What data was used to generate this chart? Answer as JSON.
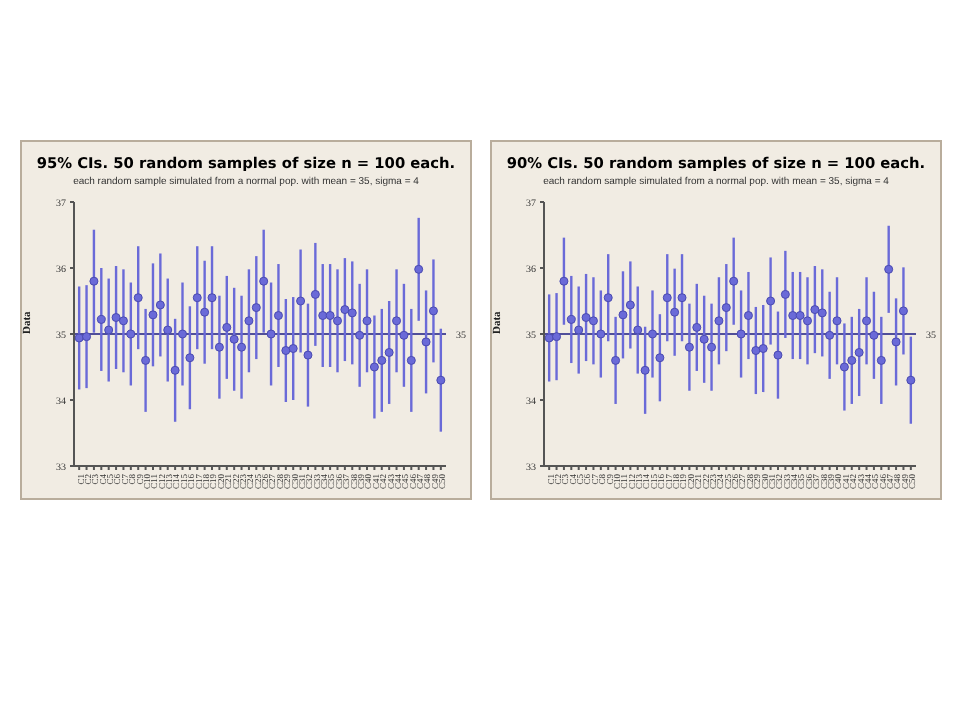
{
  "chart_data": [
    {
      "type": "scatter",
      "title": "95% CIs. 50 random samples of size n = 100 each.",
      "subtitle": "each random sample simulated from a normal pop. with mean = 35, sigma = 4",
      "ylabel": "Data",
      "categories": [
        "C1",
        "C2",
        "C3",
        "C4",
        "C5",
        "C6",
        "C7",
        "C8",
        "C9",
        "C10",
        "C11",
        "C12",
        "C13",
        "C14",
        "C15",
        "C16",
        "C17",
        "C18",
        "C19",
        "C20",
        "C21",
        "C22",
        "C23",
        "C24",
        "C25",
        "C26",
        "C27",
        "C28",
        "C29",
        "C30",
        "C31",
        "C32",
        "C33",
        "C34",
        "C35",
        "C36",
        "C37",
        "C38",
        "C39",
        "C40",
        "C41",
        "C42",
        "C43",
        "C44",
        "C45",
        "C46",
        "C47",
        "C48",
        "C49",
        "C50"
      ],
      "series": [
        {
          "color": "#6a6ad8",
          "values": [
            34.94,
            34.96,
            35.8,
            35.22,
            35.06,
            35.25,
            35.2,
            35.0,
            35.55,
            34.6,
            35.29,
            35.44,
            35.06,
            34.45,
            35.0,
            34.64,
            35.55,
            35.33,
            35.55,
            34.8,
            35.1,
            34.92,
            34.8,
            35.2,
            35.4,
            35.8,
            35.0,
            35.28,
            34.75,
            34.78,
            35.5,
            34.68,
            35.6,
            35.28,
            35.28,
            35.2,
            35.37,
            35.32,
            34.98,
            35.2,
            34.5,
            34.6,
            34.72,
            35.2,
            34.98,
            34.6,
            35.98,
            34.88,
            35.35,
            34.3
          ],
          "errors": [
            0.78,
            0.78,
            0.78,
            0.78,
            0.78,
            0.78,
            0.78,
            0.78,
            0.78,
            0.78,
            0.78,
            0.78,
            0.78,
            0.78,
            0.78,
            0.78,
            0.78,
            0.78,
            0.78,
            0.78,
            0.78,
            0.78,
            0.78,
            0.78,
            0.78,
            0.78,
            0.78,
            0.78,
            0.78,
            0.78,
            0.78,
            0.78,
            0.78,
            0.78,
            0.78,
            0.78,
            0.78,
            0.78,
            0.78,
            0.78,
            0.78,
            0.78,
            0.78,
            0.78,
            0.78,
            0.78,
            0.78,
            0.78,
            0.78,
            0.78
          ]
        }
      ],
      "ylim": [
        33,
        37
      ],
      "yticks": [
        33,
        34,
        35,
        36,
        37
      ],
      "ref_lines": [
        {
          "axis": "y",
          "value": 35,
          "label": "35",
          "color": "#1a1a80"
        }
      ],
      "marker": "circle",
      "grid": false
    },
    {
      "type": "scatter",
      "title": "90% CIs. 50 random samples of size n = 100 each.",
      "subtitle": "each random sample simulated from a normal pop. with mean = 35, sigma = 4",
      "ylabel": "Data",
      "categories": [
        "C1",
        "C2",
        "C3",
        "C4",
        "C5",
        "C6",
        "C7",
        "C8",
        "C9",
        "C10",
        "C11",
        "C12",
        "C13",
        "C14",
        "C15",
        "C16",
        "C17",
        "C18",
        "C19",
        "C20",
        "C21",
        "C22",
        "C23",
        "C24",
        "C25",
        "C26",
        "C27",
        "C28",
        "C29",
        "C30",
        "C31",
        "C32",
        "C33",
        "C34",
        "C35",
        "C36",
        "C37",
        "C38",
        "C39",
        "C40",
        "C41",
        "C42",
        "C43",
        "C44",
        "C45",
        "C46",
        "C47",
        "C48",
        "C49",
        "C50"
      ],
      "series": [
        {
          "color": "#6a6ad8",
          "values": [
            34.94,
            34.96,
            35.8,
            35.22,
            35.06,
            35.25,
            35.2,
            35.0,
            35.55,
            34.6,
            35.29,
            35.44,
            35.06,
            34.45,
            35.0,
            34.64,
            35.55,
            35.33,
            35.55,
            34.8,
            35.1,
            34.92,
            34.8,
            35.2,
            35.4,
            35.8,
            35.0,
            35.28,
            34.75,
            34.78,
            35.5,
            34.68,
            35.6,
            35.28,
            35.28,
            35.2,
            35.37,
            35.32,
            34.98,
            35.2,
            34.5,
            34.6,
            34.72,
            35.2,
            34.98,
            34.6,
            35.98,
            34.88,
            35.35,
            34.3
          ],
          "errors": [
            0.66,
            0.66,
            0.66,
            0.66,
            0.66,
            0.66,
            0.66,
            0.66,
            0.66,
            0.66,
            0.66,
            0.66,
            0.66,
            0.66,
            0.66,
            0.66,
            0.66,
            0.66,
            0.66,
            0.66,
            0.66,
            0.66,
            0.66,
            0.66,
            0.66,
            0.66,
            0.66,
            0.66,
            0.66,
            0.66,
            0.66,
            0.66,
            0.66,
            0.66,
            0.66,
            0.66,
            0.66,
            0.66,
            0.66,
            0.66,
            0.66,
            0.66,
            0.66,
            0.66,
            0.66,
            0.66,
            0.66,
            0.66,
            0.66,
            0.66
          ]
        }
      ],
      "ylim": [
        33,
        37
      ],
      "yticks": [
        33,
        34,
        35,
        36,
        37
      ],
      "ref_lines": [
        {
          "axis": "y",
          "value": 35,
          "label": "35",
          "color": "#1a1a80"
        }
      ],
      "marker": "circle",
      "grid": false
    }
  ]
}
